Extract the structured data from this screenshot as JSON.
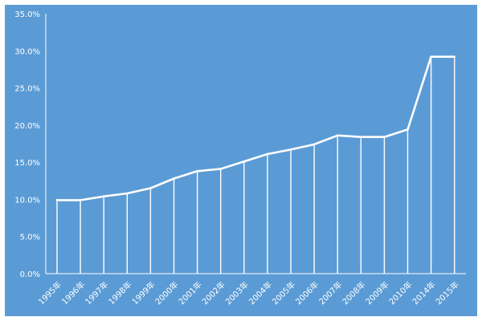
{
  "chart_data": {
    "type": "area",
    "title": "",
    "xlabel": "",
    "ylabel": "",
    "categories": [
      "1995年",
      "1996年",
      "1997年",
      "1998年",
      "1999年",
      "2000年",
      "2001年",
      "2002年",
      "2003年",
      "2004年",
      "2005年",
      "2006年",
      "2007年",
      "2008年",
      "2009年",
      "2010年",
      "2014年",
      "2015年"
    ],
    "values": [
      9.9,
      9.9,
      10.4,
      10.8,
      11.5,
      12.8,
      13.8,
      14.1,
      15.1,
      16.1,
      16.7,
      17.4,
      18.6,
      18.4,
      18.4,
      19.4,
      29.2,
      29.2
    ],
    "ylim": [
      0,
      35
    ],
    "y_ticks": [
      "0.0%",
      "5.0%",
      "10.0%",
      "15.0%",
      "20.0%",
      "25.0%",
      "30.0%",
      "35.0%"
    ],
    "y_tick_values": [
      0,
      5,
      10,
      15,
      20,
      25,
      30,
      35
    ],
    "value_format": "percent",
    "grid": false,
    "legend": "none",
    "colors": {
      "background": "#5b9bd5",
      "line": "#ffffff",
      "drop_lines": "#ffffff",
      "text": "#ffffff"
    }
  }
}
